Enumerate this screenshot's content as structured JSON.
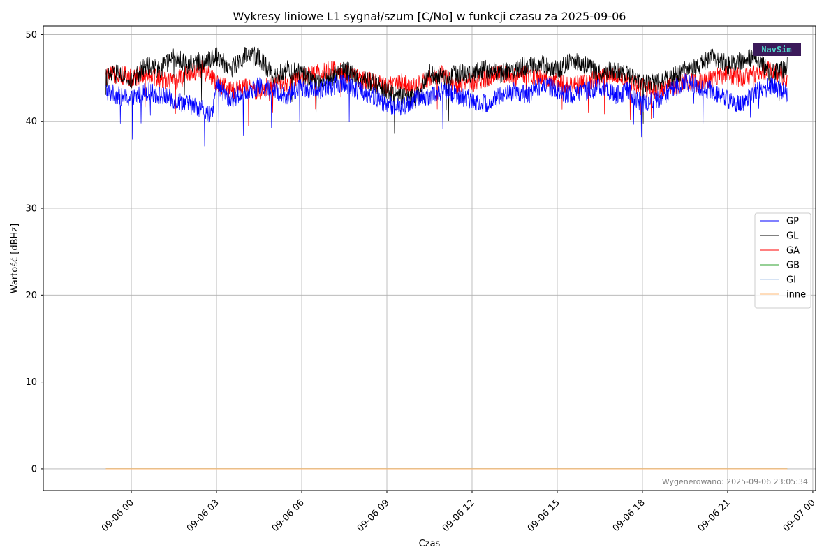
{
  "chart_data": {
    "type": "line",
    "title": "Wykresy liniowe L1 sygnał/szum [C/No] w funkcji czasu za 2025-09-06",
    "xlabel": "Czas",
    "ylabel": "Wartość [dBHz]",
    "ylim": [
      -2.5,
      51
    ],
    "y_ticks": [
      0,
      10,
      20,
      30,
      40,
      50
    ],
    "xlim_hours": [
      -3.1,
      24.1
    ],
    "x_ticks": [
      {
        "hour": 0,
        "label": "09-06 00"
      },
      {
        "hour": 3,
        "label": "09-06 03"
      },
      {
        "hour": 6,
        "label": "09-06 06"
      },
      {
        "hour": 9,
        "label": "09-06 09"
      },
      {
        "hour": 12,
        "label": "09-06 12"
      },
      {
        "hour": 15,
        "label": "09-06 15"
      },
      {
        "hour": 18,
        "label": "09-06 18"
      },
      {
        "hour": 21,
        "label": "09-06 21"
      },
      {
        "hour": 24,
        "label": "09-07 00"
      }
    ],
    "grid": true,
    "legend_position": "right",
    "series": [
      {
        "name": "GP",
        "color": "#0000ff",
        "x_hours": [
          -0.9,
          -0.5,
          0,
          0.5,
          1,
          1.5,
          2,
          2.5,
          2.8,
          3,
          3.5,
          4,
          4.5,
          5,
          5.5,
          6,
          6.5,
          7,
          7.5,
          8,
          8.5,
          9,
          9.5,
          10,
          10.5,
          11,
          11.5,
          12,
          12.5,
          13,
          13.5,
          14,
          14.5,
          15,
          15.5,
          16,
          16.5,
          17,
          17.5,
          18,
          18.5,
          19,
          19.5,
          20,
          20.5,
          21,
          21.5,
          22,
          22.5,
          23,
          23.1
        ],
        "values": [
          43.5,
          43.0,
          42.5,
          43.5,
          43.0,
          42.5,
          42.0,
          41.5,
          40.5,
          44.0,
          42.5,
          43.5,
          44.0,
          43.5,
          43.0,
          44.0,
          43.5,
          44.0,
          44.5,
          43.5,
          43.0,
          42.0,
          41.5,
          42.5,
          43.0,
          43.5,
          43.0,
          42.5,
          42.0,
          43.0,
          43.5,
          43.0,
          44.5,
          43.5,
          43.0,
          43.5,
          44.0,
          43.0,
          43.5,
          42.0,
          42.5,
          43.5,
          44.5,
          44.0,
          43.5,
          42.5,
          42.0,
          43.5,
          44.0,
          43.5,
          43.0
        ]
      },
      {
        "name": "GL",
        "color": "#000000",
        "x_hours": [
          -0.9,
          -0.5,
          0,
          0.5,
          1,
          1.5,
          2,
          2.5,
          3,
          3.5,
          4,
          4.5,
          5,
          5.5,
          6,
          6.5,
          7,
          7.5,
          8,
          8.5,
          9,
          9.5,
          10,
          10.5,
          11,
          11.5,
          12,
          12.5,
          13,
          13.5,
          14,
          14.5,
          15,
          15.5,
          16,
          16.5,
          17,
          17.5,
          18,
          18.5,
          19,
          19.5,
          20,
          20.5,
          21,
          21.5,
          22,
          22.5,
          23,
          23.1
        ],
        "values": [
          45.0,
          45.5,
          44.5,
          46.5,
          46.0,
          47.5,
          46.5,
          47.0,
          47.5,
          46.0,
          47.5,
          47.5,
          45.0,
          46.0,
          45.5,
          44.5,
          45.0,
          46.0,
          45.0,
          44.5,
          43.5,
          43.0,
          42.5,
          45.5,
          45.0,
          45.5,
          45.5,
          46.0,
          45.5,
          46.0,
          46.5,
          46.5,
          46.0,
          47.0,
          46.5,
          45.5,
          46.0,
          45.5,
          44.5,
          44.5,
          45.0,
          46.0,
          46.5,
          47.5,
          46.5,
          47.0,
          47.5,
          45.5,
          46.0,
          46.5
        ]
      },
      {
        "name": "GA",
        "color": "#ff0000",
        "x_hours": [
          -0.9,
          -0.5,
          0,
          0.5,
          1,
          1.5,
          2,
          2.5,
          3,
          3.5,
          4,
          4.5,
          5,
          5.5,
          6,
          6.5,
          7,
          7.5,
          8,
          8.5,
          9,
          9.5,
          10,
          10.5,
          11,
          11.5,
          12,
          12.5,
          13,
          13.5,
          14,
          14.5,
          15,
          15.5,
          16,
          16.5,
          17,
          17.5,
          18,
          18.5,
          19,
          19.5,
          20,
          20.5,
          21,
          21.5,
          22,
          22.5,
          23,
          23.1
        ],
        "values": [
          45.0,
          45.5,
          45.0,
          45.5,
          45.0,
          44.5,
          45.5,
          46.0,
          44.5,
          43.5,
          44.0,
          43.5,
          44.5,
          44.0,
          45.0,
          45.5,
          46.0,
          45.5,
          45.0,
          44.5,
          44.0,
          44.5,
          44.0,
          45.0,
          45.5,
          44.0,
          44.5,
          45.0,
          45.5,
          45.0,
          45.5,
          45.0,
          44.5,
          44.0,
          44.5,
          45.0,
          45.5,
          44.5,
          44.0,
          43.5,
          44.0,
          44.5,
          44.5,
          45.0,
          45.5,
          45.0,
          45.5,
          46.0,
          45.0,
          44.5
        ]
      },
      {
        "name": "GB",
        "color": "#2ca02c",
        "x_hours": [
          -0.9,
          23.1
        ],
        "values": [
          0,
          0
        ]
      },
      {
        "name": "GI",
        "color": "#aec7e8",
        "x_hours": [
          -0.9,
          23.1
        ],
        "values": [
          0,
          0
        ]
      },
      {
        "name": "inne",
        "color": "#ffbb78",
        "x_hours": [
          -0.9,
          23.1
        ],
        "values": [
          0,
          0
        ]
      }
    ],
    "footnote": "Wygenerowano: 2025-09-06 23:05:34",
    "logo_text": "NavSim"
  }
}
